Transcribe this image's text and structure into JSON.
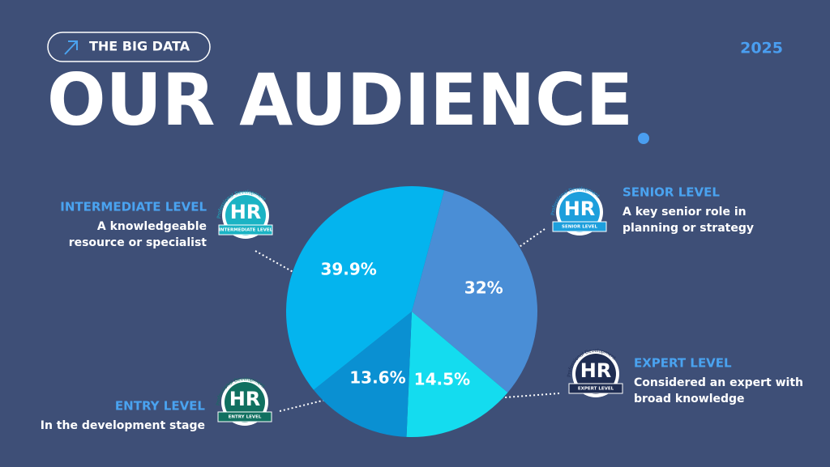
{
  "header": {
    "tag": "THE BIG DATA",
    "year": "2025",
    "title": "OUR AUDIENCE"
  },
  "chart_data": {
    "type": "pie",
    "categories": [
      "SENIOR LEVEL",
      "EXPERT LEVEL",
      "ENTRY LEVEL",
      "INTERMEDIATE LEVEL"
    ],
    "descriptions": [
      [
        "A key senior role in",
        "planning or strategy"
      ],
      [
        "Considered an expert with",
        "broad knowledge"
      ],
      [
        "In the development stage"
      ],
      [
        "A knowledgeable",
        "resource or specialist"
      ]
    ],
    "values": [
      32,
      14.5,
      13.6,
      39.9
    ],
    "value_labels": [
      "32%",
      "14.5%",
      "13.6%",
      "39.9%"
    ],
    "colors": [
      "#4a8ed6",
      "#14dcef",
      "#0a90d2",
      "#04b4ee"
    ],
    "badge_colors": [
      "#1d9fdc",
      "#1f2d52",
      "#117060",
      "#1bb3c4"
    ],
    "badge_title": "HR",
    "badge_arc": "Professional Development"
  }
}
